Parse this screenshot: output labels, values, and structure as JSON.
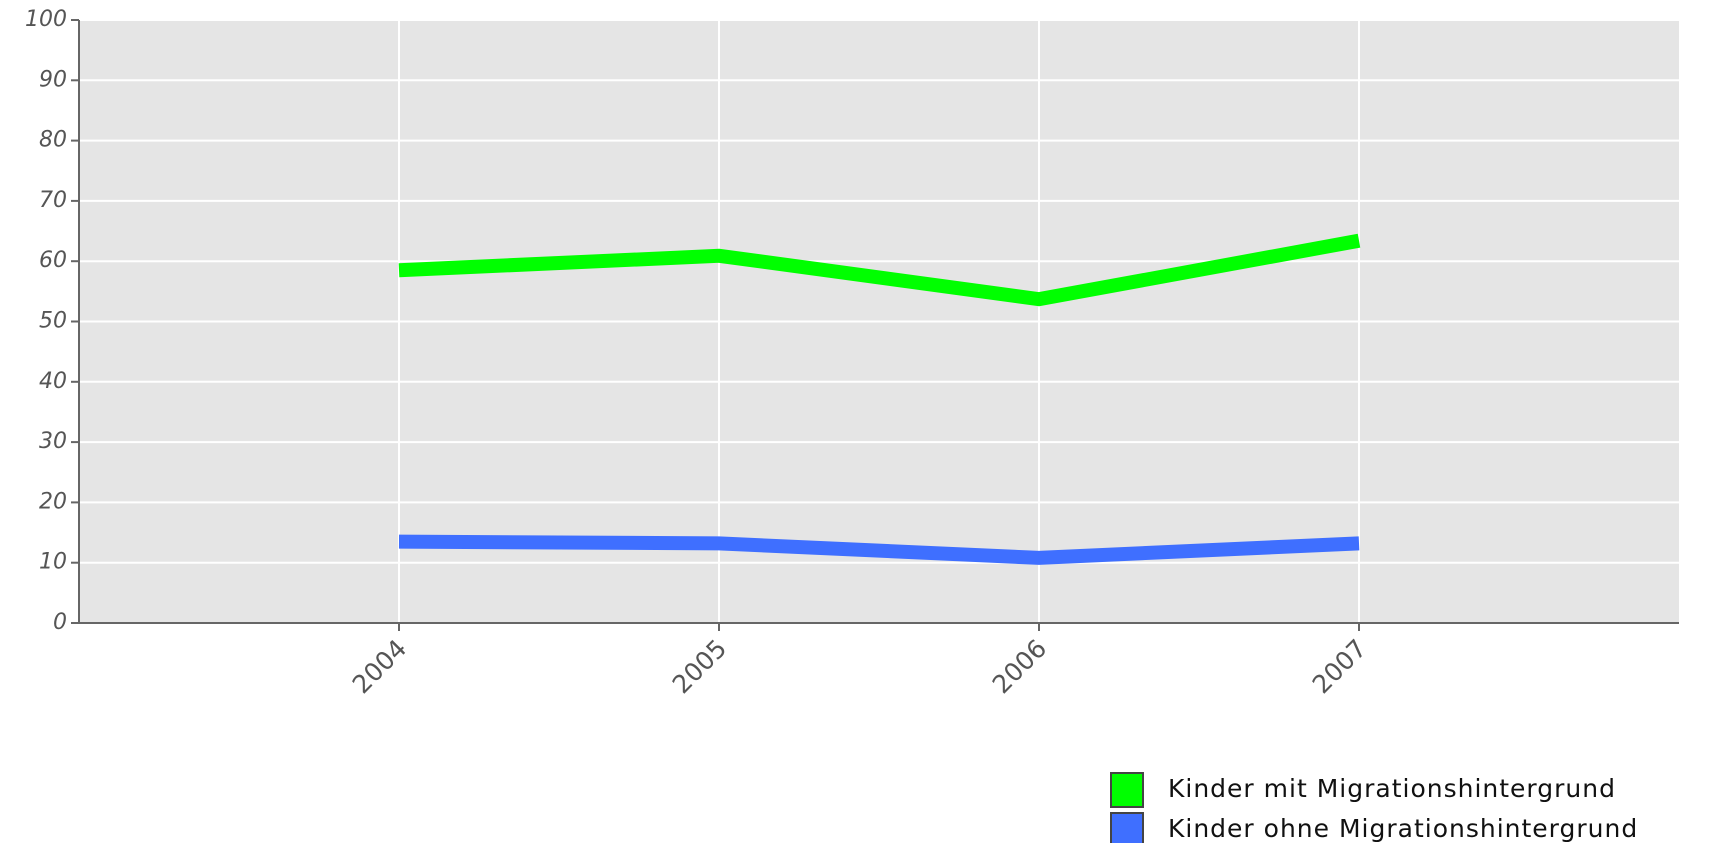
{
  "chart_data": {
    "type": "line",
    "x": [
      2004,
      2005,
      2006,
      2007
    ],
    "series": [
      {
        "name": "Kinder mit Migrationshintergrund",
        "color": "#00ff00",
        "values": [
          58.5,
          60.9,
          53.7,
          63.4
        ]
      },
      {
        "name": "Kinder ohne Migrationshintergrund",
        "color": "#3f6fff",
        "values": [
          13.5,
          13.2,
          10.8,
          13.2
        ]
      }
    ],
    "xlim": [
      2003,
      2008
    ],
    "xticks": [
      2004,
      2005,
      2006,
      2007
    ],
    "ylim": [
      0,
      100
    ],
    "yticks": [
      0,
      10,
      20,
      30,
      40,
      50,
      60,
      70,
      80,
      90,
      100
    ],
    "grid": true
  }
}
